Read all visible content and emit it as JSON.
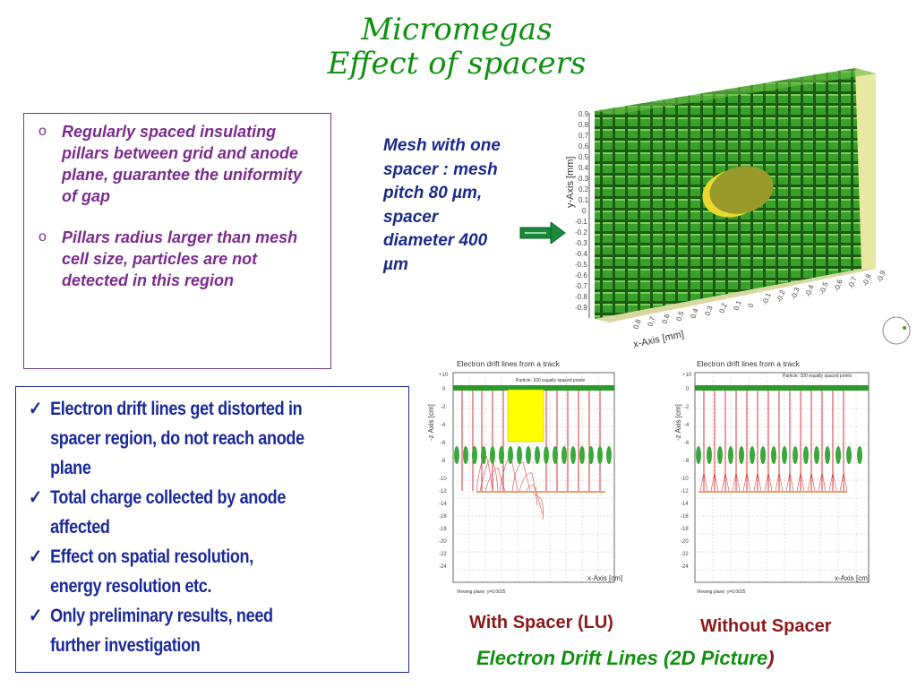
{
  "title": {
    "line1": "Micromegas",
    "line2": "Effect of spacers"
  },
  "box1": {
    "bullets": [
      "Regularly spaced insulating pillars between grid and anode plane, guarantee the uniformity of gap",
      "Pillars radius larger than mesh cell size, particles are not detected in this region"
    ]
  },
  "mesh_caption": {
    "l1": "Mesh with one",
    "l2": "spacer : mesh",
    "l3": "pitch 80 µm,",
    "l4": "spacer",
    "l5": "diameter 400",
    "l6": "µm"
  },
  "box2": {
    "items": [
      {
        "l1": "Electron drift lines get distorted in",
        "l2": "spacer region, do not reach anode",
        "l3": "plane"
      },
      {
        "l1": "Total charge collected by anode",
        "l2": "affected"
      },
      {
        "l1": "Effect on spatial resolution,",
        "l2": "energy resolution etc."
      },
      {
        "l1": "Only preliminary results, need",
        "l2": "further investigation"
      }
    ]
  },
  "mesh_image": {
    "y_axis_label": "y-Axis [mm]",
    "x_axis_label": "x-Axis [mm]",
    "y_ticks": [
      "0.9",
      "0.8",
      "0.7",
      "0.6",
      "0.5",
      "0.4",
      "0.3",
      "0.2",
      "0.1",
      "0",
      "-0.1",
      "-0.2",
      "-0.3",
      "-0.4",
      "-0.5",
      "-0.6",
      "-0.7",
      "-0.8",
      "-0.9"
    ],
    "x_ticks": [
      "-0.9",
      "-0.8",
      "-0.7",
      "-0.6",
      "-0.5",
      "-0.4",
      "-0.3",
      "-0.2",
      "-0.1",
      "0",
      "0.1",
      "0.2",
      "0.3",
      "0.4",
      "0.5",
      "0.6",
      "0.7",
      "0.8"
    ]
  },
  "plots": [
    {
      "title": "Electron drift lines from a track",
      "subtitle": "Particle: 100 equally spaced points",
      "ylabel": "-z Axis [cm]",
      "xlabel": "x-Axis [cm]",
      "footer": "Viewing plane: y=0.0025"
    },
    {
      "title": "Electron drift lines from a track",
      "subtitle": "Particle: 100 equally spaced points",
      "ylabel": "-z Axis [cm]",
      "xlabel": "x-Axis [cm]",
      "footer": "Viewing plane: y=0.0025"
    }
  ],
  "plot_y_ticks": [
    "+10",
    "0",
    "-2",
    "-4",
    "-6",
    "-8",
    "-10",
    "-12",
    "-14",
    "-16",
    "-18",
    "-20",
    "-22",
    "-24"
  ],
  "captions": {
    "with_spacer": "With Spacer (LU)",
    "without_spacer": "Without Spacer",
    "drift_lines": "Electron Drift Lines (2D Picture",
    "drift_paren": ")"
  },
  "colors": {
    "title_green": "#109010",
    "purple_text": "#7a2c8c",
    "blue_text": "#1a2a9a",
    "caption_red": "#8a1a1a"
  }
}
